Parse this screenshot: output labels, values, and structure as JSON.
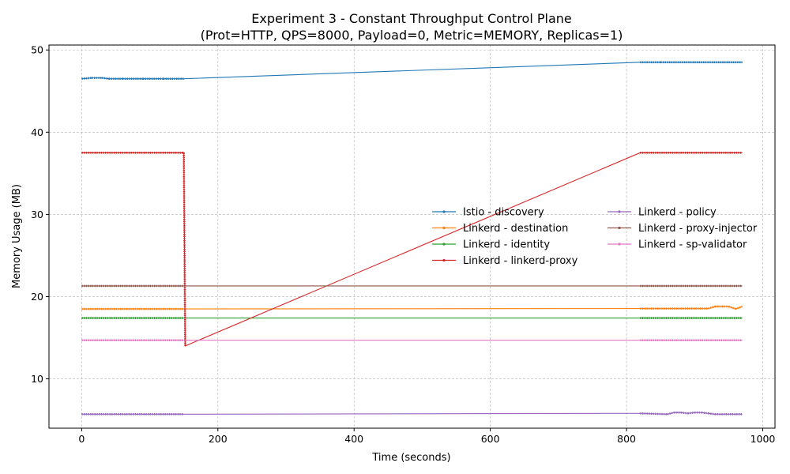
{
  "chart_data": {
    "type": "line",
    "title": "Experiment 3 - Constant Throughput Control Plane",
    "subtitle": "(Prot=HTTP, QPS=8000, Payload=0, Metric=MEMORY, Replicas=1)",
    "xlabel": "Time (seconds)",
    "ylabel": "Memory Usage (MB)",
    "xlim": [
      -48,
      1018
    ],
    "ylim": [
      4.0,
      50.6
    ],
    "xticks": [
      0,
      200,
      400,
      600,
      800,
      1000
    ],
    "yticks": [
      10,
      20,
      30,
      40,
      50
    ],
    "grid": true,
    "legend_position": "center-right",
    "series": [
      {
        "name": "Istio - discovery",
        "color": "#1f77b4",
        "x": [
          0,
          15,
          30,
          40,
          60,
          90,
          120,
          150,
          820,
          850,
          900,
          950,
          970
        ],
        "y": [
          46.5,
          46.6,
          46.6,
          46.5,
          46.5,
          46.5,
          46.5,
          46.5,
          48.5,
          48.5,
          48.5,
          48.5,
          48.5
        ]
      },
      {
        "name": "Linkerd - destination",
        "color": "#ff7f0e",
        "x": [
          0,
          50,
          100,
          150,
          820,
          870,
          920,
          930,
          940,
          950,
          960,
          970
        ],
        "y": [
          18.5,
          18.5,
          18.5,
          18.5,
          18.55,
          18.55,
          18.55,
          18.8,
          18.8,
          18.8,
          18.5,
          18.8
        ]
      },
      {
        "name": "Linkerd - identity",
        "color": "#2ca02c",
        "x": [
          0,
          50,
          100,
          150,
          820,
          870,
          920,
          970
        ],
        "y": [
          17.4,
          17.4,
          17.4,
          17.4,
          17.4,
          17.4,
          17.4,
          17.4
        ]
      },
      {
        "name": "Linkerd - linkerd-proxy",
        "color": "#d62728",
        "x": [
          0,
          50,
          100,
          148,
          150,
          152,
          820,
          870,
          920,
          970
        ],
        "y": [
          37.5,
          37.5,
          37.5,
          37.5,
          37.5,
          14.0,
          37.5,
          37.5,
          37.5,
          37.5
        ]
      },
      {
        "name": "Linkerd - policy",
        "color": "#9467bd",
        "x": [
          0,
          50,
          100,
          150,
          820,
          860,
          870,
          880,
          890,
          900,
          910,
          920,
          930,
          970
        ],
        "y": [
          5.7,
          5.7,
          5.7,
          5.7,
          5.8,
          5.7,
          5.9,
          5.9,
          5.8,
          5.9,
          5.9,
          5.8,
          5.7,
          5.7
        ]
      },
      {
        "name": "Linkerd - proxy-injector",
        "color": "#8c564b",
        "x": [
          0,
          50,
          100,
          150,
          820,
          870,
          920,
          970
        ],
        "y": [
          21.3,
          21.3,
          21.3,
          21.3,
          21.3,
          21.3,
          21.3,
          21.3
        ]
      },
      {
        "name": "Linkerd - sp-validator",
        "color": "#e377c2",
        "x": [
          0,
          50,
          100,
          150,
          820,
          870,
          920,
          970
        ],
        "y": [
          14.7,
          14.7,
          14.7,
          14.7,
          14.7,
          14.7,
          14.7,
          14.7
        ]
      }
    ]
  }
}
